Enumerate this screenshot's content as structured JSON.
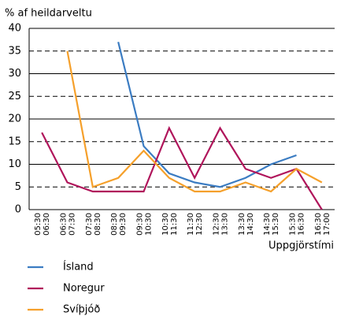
{
  "chart_data": {
    "type": "line",
    "y_label": "% af heildarveltu",
    "x_label": "Uppgjörstími",
    "categories": [
      [
        "05:30",
        "06:30"
      ],
      [
        "06:30",
        "07:30"
      ],
      [
        "07:30",
        "08:30"
      ],
      [
        "08:30",
        "09:30"
      ],
      [
        "09:30",
        "10:30"
      ],
      [
        "10:30",
        "11:30"
      ],
      [
        "11:30",
        "12:30"
      ],
      [
        "12:30",
        "13:30"
      ],
      [
        "13:30",
        "14:30"
      ],
      [
        "14:30",
        "15:30"
      ],
      [
        "15:30",
        "16:30"
      ],
      [
        "16:30",
        "17:00"
      ]
    ],
    "series": [
      {
        "name": "Ísland",
        "color": "#3b7cc2",
        "values": [
          null,
          null,
          null,
          37,
          14,
          8,
          6,
          5,
          7,
          10,
          12,
          null
        ]
      },
      {
        "name": "Noregur",
        "color": "#b0155b",
        "values": [
          17,
          6,
          4,
          4,
          4,
          18,
          7,
          18,
          9,
          7,
          9,
          0
        ]
      },
      {
        "name": "Svíþjóð",
        "color": "#f5a02b",
        "values": [
          null,
          35,
          5,
          7,
          13,
          7,
          4,
          4,
          6,
          4,
          9,
          6
        ]
      }
    ],
    "ylim": [
      0,
      40
    ],
    "yticks": [
      0,
      5,
      10,
      15,
      20,
      25,
      30,
      35,
      40
    ],
    "grid": true
  }
}
